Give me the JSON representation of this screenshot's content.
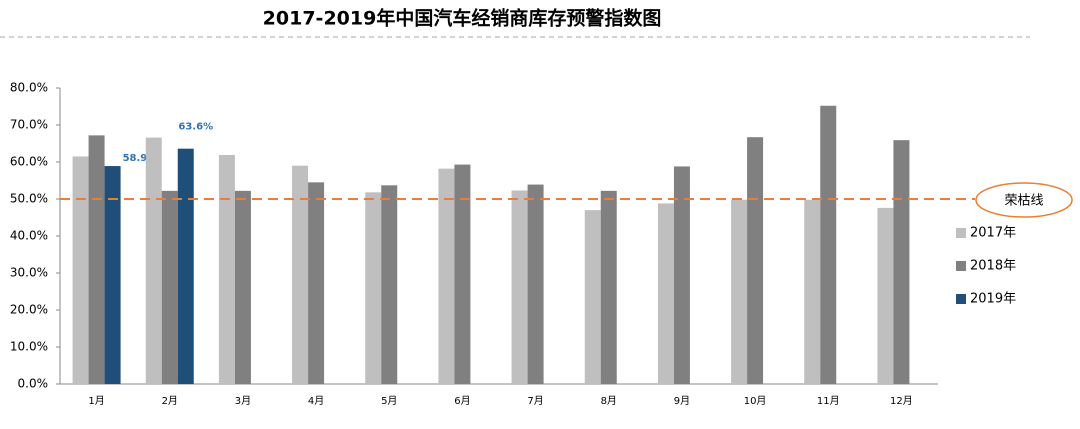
{
  "chart_data": {
    "type": "bar",
    "title": "2017-2019年中国汽车经销商库存预警指数图",
    "categories": [
      "1月",
      "2月",
      "3月",
      "4月",
      "5月",
      "6月",
      "7月",
      "8月",
      "9月",
      "10月",
      "11月",
      "12月"
    ],
    "series": [
      {
        "name": "2017年",
        "color": "#bfbfbf",
        "values": [
          61.5,
          66.6,
          61.9,
          59.0,
          51.8,
          58.2,
          52.3,
          47.0,
          48.8,
          49.8,
          49.8,
          47.6
        ]
      },
      {
        "name": "2018年",
        "color": "#808080",
        "values": [
          67.2,
          52.2,
          52.2,
          54.5,
          53.7,
          59.3,
          53.9,
          52.2,
          58.8,
          66.7,
          75.2,
          65.9
        ]
      },
      {
        "name": "2019年",
        "color": "#1f4e79",
        "values": [
          58.9,
          63.6,
          null,
          null,
          null,
          null,
          null,
          null,
          null,
          null,
          null,
          null
        ],
        "value_labels": [
          "58.9%",
          "63.6%",
          null,
          null,
          null,
          null,
          null,
          null,
          null,
          null,
          null,
          null
        ]
      }
    ],
    "ylim": [
      0,
      80
    ],
    "yticks": [
      {
        "value": 0,
        "label": "0.0%"
      },
      {
        "value": 10,
        "label": "10.0%"
      },
      {
        "value": 20,
        "label": "20.0%"
      },
      {
        "value": 30,
        "label": "30.0%"
      },
      {
        "value": 40,
        "label": "40.0%"
      },
      {
        "value": 50,
        "label": "50.0%"
      },
      {
        "value": 60,
        "label": "60.0%"
      },
      {
        "value": 70,
        "label": "70.0%"
      },
      {
        "value": 80,
        "label": "80.0%"
      }
    ],
    "reference_line": {
      "value": 50,
      "label": "荣枯线",
      "color": "#ed7d31"
    },
    "legend": "right"
  }
}
